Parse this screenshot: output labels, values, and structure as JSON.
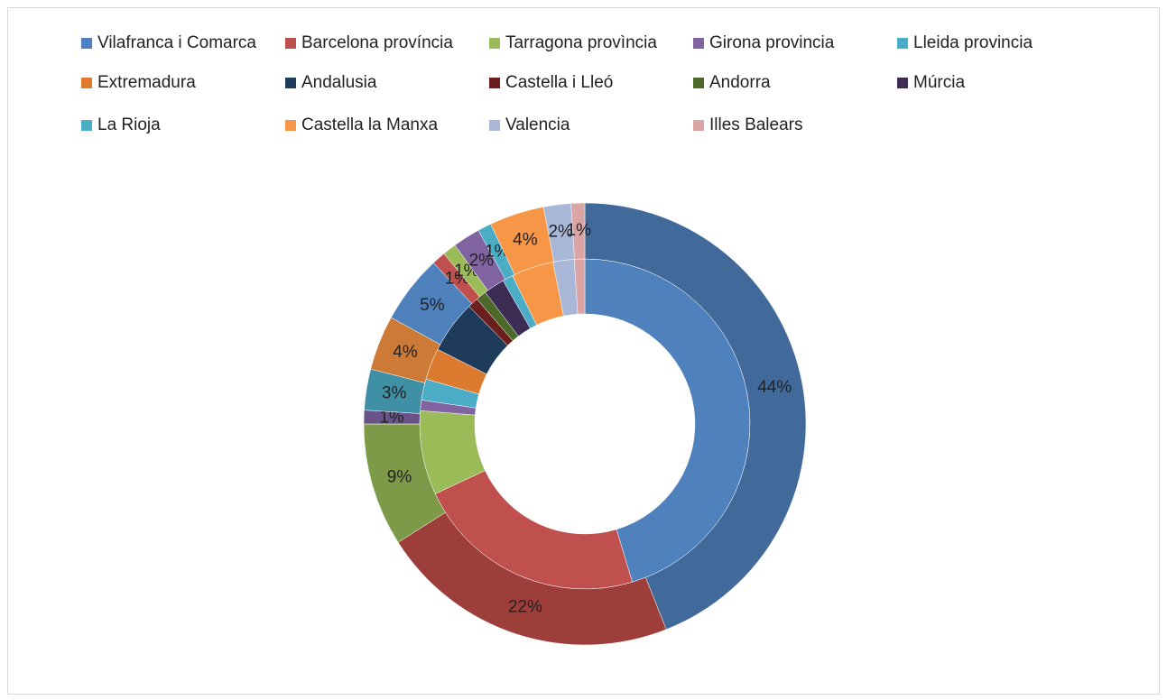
{
  "chart_data": {
    "type": "doughnut",
    "categories": [
      "Vilafranca i Comarca",
      "Barcelona província",
      "Tarragona provìncia",
      "Girona provincia",
      "Lleida provincia",
      "Extremadura",
      "Andalusia",
      "Castella i Lleó",
      "Andorra",
      "Múrcia",
      "La Rioja",
      "Castella la Manxa",
      "Valencia",
      "Illes Balears"
    ],
    "series": [
      {
        "values": [
          44,
          22,
          8,
          1,
          2,
          3,
          5,
          1,
          1,
          2,
          1,
          4,
          2,
          1
        ],
        "colors": [
          "#4f81bd",
          "#c0504d",
          "#9bbb59",
          "#8064a2",
          "#4bacc6",
          "#dc7a30",
          "#1f3b5c",
          "#6b1f1d",
          "#4e6a2a",
          "#3d2d55",
          "#4bacc6",
          "#f79646",
          "#a9b8d8",
          "#dba5a5"
        ]
      },
      {
        "values": [
          44,
          22,
          9,
          1,
          3,
          4,
          5,
          1,
          1,
          2,
          1,
          4,
          2,
          1
        ],
        "value_labels": [
          "44%",
          "22%",
          "9%",
          "1%",
          "3%",
          "4%",
          "5%",
          "1%",
          "1%",
          "2%",
          "1%",
          "4%",
          "2%",
          "1%"
        ],
        "colors": [
          "#416a9b",
          "#9d3e3b",
          "#7c9a47",
          "#6a5388",
          "#3f8fa5",
          "#cc7a36",
          "#4f81bd",
          "#c0504d",
          "#9bbb59",
          "#8064a2",
          "#4bacc6",
          "#f79646",
          "#a9b8d8",
          "#dba5a5"
        ]
      }
    ]
  }
}
